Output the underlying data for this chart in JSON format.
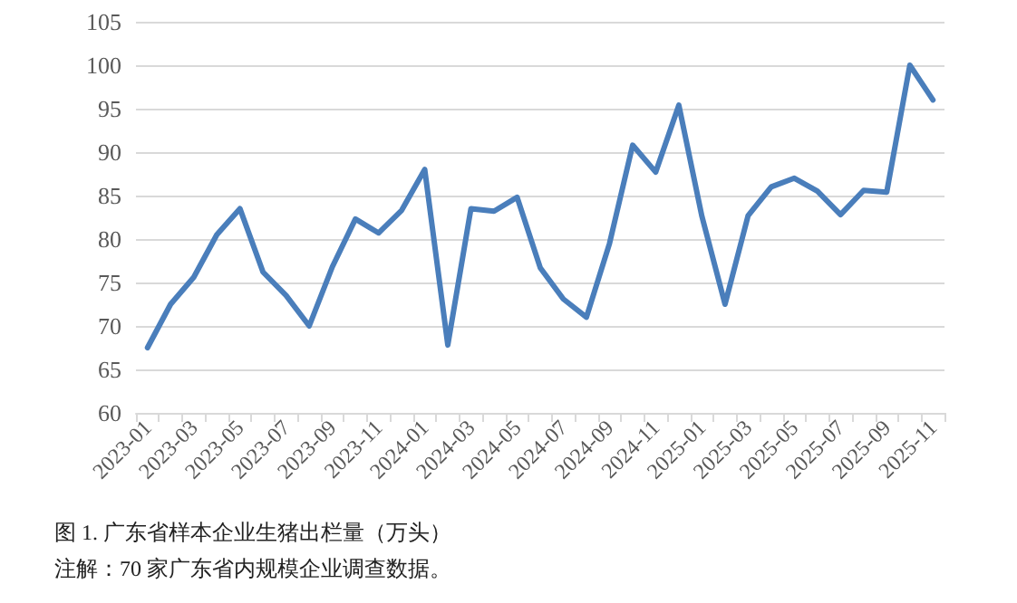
{
  "chart_data": {
    "type": "line",
    "title": "图 1. 广东省样本企业生猪出栏量（万头）",
    "annotations": [
      "注解：70 家广东省内规模企业调查数据。"
    ],
    "categories": [
      "2023-01",
      null,
      "2023-03",
      null,
      "2023-05",
      null,
      "2023-07",
      null,
      "2023-09",
      null,
      "2023-11",
      null,
      "2024-01",
      null,
      "2024-03",
      null,
      "2024-05",
      null,
      "2024-07",
      null,
      "2024-09",
      null,
      "2024-11",
      null,
      "2025-01",
      null,
      "2025-03",
      null,
      "2025-05",
      null,
      "2025-07",
      null,
      "2025-09",
      null,
      "2025-11"
    ],
    "series": [
      {
        "color": "#4a7ebb",
        "values": [
          67.5,
          72.5,
          75.6,
          80.5,
          83.5,
          76.2,
          73.5,
          70.0,
          76.8,
          82.3,
          80.7,
          83.3,
          88.0,
          67.8,
          83.5,
          83.2,
          84.8,
          76.7,
          73.1,
          71.0,
          79.5,
          90.8,
          87.7,
          95.4,
          82.6,
          72.5,
          82.7,
          86.0,
          87.0,
          85.5,
          82.8,
          85.6,
          85.4,
          100.0,
          96.0
        ]
      }
    ],
    "ylim": [
      60,
      105
    ],
    "yticks": [
      60,
      65,
      70,
      75,
      80,
      85,
      90,
      95,
      100,
      105
    ],
    "grid": "y",
    "marker": "none",
    "line_style": "solid"
  }
}
